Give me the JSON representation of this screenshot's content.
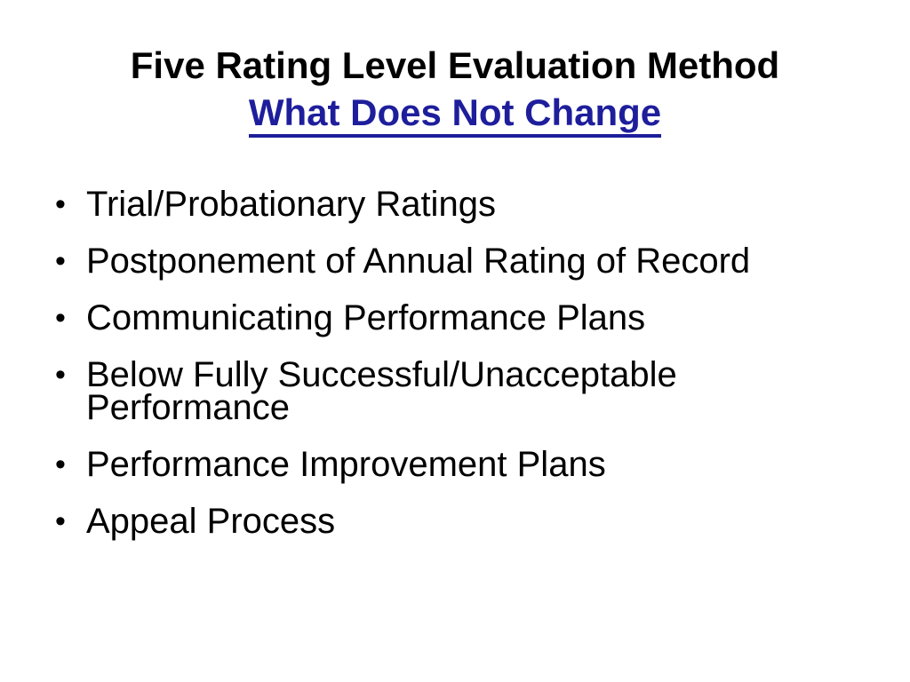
{
  "slide": {
    "title_line1": "Five Rating Level Evaluation Method",
    "title_line2": "What Does Not Change",
    "bullet_glyph": "•",
    "bullets": [
      "Trial/Probationary Ratings",
      "Postponement of Annual Rating of Record",
      "Communicating Performance Plans",
      "Below Fully Successful/Unacceptable Performance",
      "Performance Improvement Plans",
      "Appeal Process"
    ],
    "colors": {
      "background": "#ffffff",
      "title_text": "#000000",
      "subtitle_text": "#1e1e9c",
      "bullet_text": "#000000"
    }
  }
}
